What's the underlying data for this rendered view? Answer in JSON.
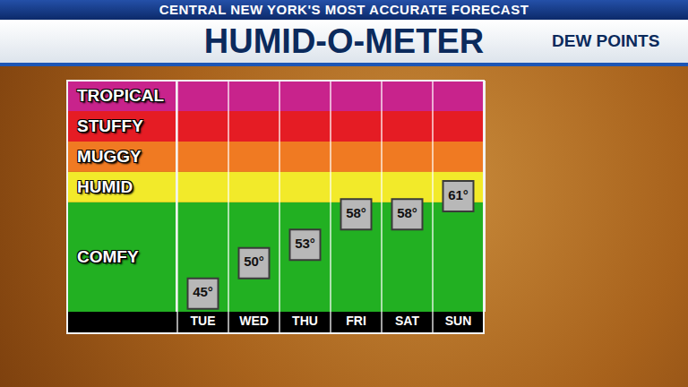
{
  "header": {
    "banner": "CENTRAL NEW YORK'S MOST ACCURATE FORECAST"
  },
  "chart_data": {
    "type": "scatter",
    "title": "HUMID-O-METER",
    "subtitle": "DEW POINTS",
    "categories": [
      "TUE",
      "WED",
      "THU",
      "FRI",
      "SAT",
      "SUN"
    ],
    "values": [
      45,
      50,
      53,
      58,
      58,
      61
    ],
    "value_labels": [
      "45°",
      "50°",
      "53°",
      "58°",
      "58°",
      "61°"
    ],
    "data_labels": true,
    "marker": "square",
    "color": "#b8b8b8",
    "ylim": [
      42,
      80
    ],
    "tick_labels": "x",
    "bands": [
      {
        "label": "COMFY",
        "from": 42,
        "to": 60,
        "color": "#22b022"
      },
      {
        "label": "HUMID",
        "from": 60,
        "to": 65,
        "color": "#f2ea2a"
      },
      {
        "label": "MUGGY",
        "from": 65,
        "to": 70,
        "color": "#f07a22"
      },
      {
        "label": "STUFFY",
        "from": 70,
        "to": 75,
        "color": "#e51c24"
      },
      {
        "label": "TROPICAL",
        "from": 75,
        "to": 80,
        "color": "#c8238c"
      }
    ]
  }
}
